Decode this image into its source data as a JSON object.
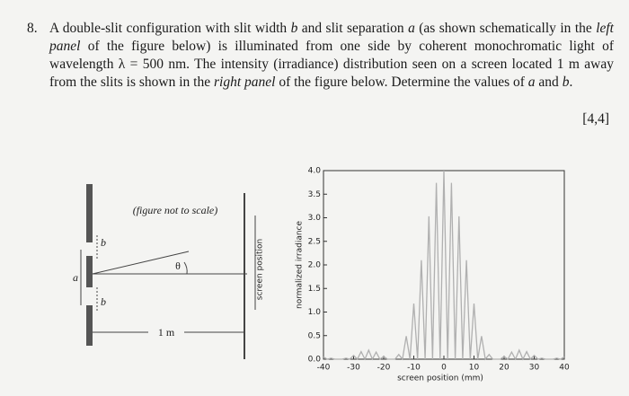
{
  "question": {
    "number": "8.",
    "segments": [
      "A double-slit configuration with slit width ",
      "b",
      " and slit separation ",
      "a",
      " (as shown schematically in the ",
      "left panel",
      " of the figure below) is illuminated from one side by coherent monochromatic light of wavelength λ = 500 nm. The intensity (irradiance) distribution seen on a screen located 1 m away from the slits is shown in the ",
      "right panel",
      " of the figure below. Determine the values of ",
      "a",
      " and ",
      "b",
      "."
    ],
    "marks": "[4,4]"
  },
  "left_panel": {
    "note": "(figure not to scale)",
    "slit_width_top": "b",
    "separation": "a",
    "slit_width_bottom": "b",
    "angle": "θ",
    "distance": "1 m",
    "screen_label": "screen position"
  },
  "chart_data": {
    "type": "line",
    "xlabel": "screen position (mm)",
    "ylabel": "normalized irradiance",
    "x": [
      -40,
      -38.75,
      -37.5,
      -36.25,
      -35,
      -33.75,
      -32.5,
      -31.25,
      -30,
      -28.75,
      -27.5,
      -26.25,
      -25,
      -23.75,
      -22.5,
      -21.25,
      -20,
      -18.75,
      -17.5,
      -16.25,
      -15,
      -13.75,
      -12.5,
      -11.25,
      -10,
      -8.75,
      -7.5,
      -6.25,
      -5,
      -3.75,
      -2.5,
      -1.25,
      0,
      1.25,
      2.5,
      3.75,
      5,
      6.25,
      7.5,
      8.75,
      10,
      11.25,
      12.5,
      13.75,
      15,
      16.25,
      17.5,
      18.75,
      20,
      21.25,
      22.5,
      23.75,
      25,
      26.25,
      27.5,
      28.75,
      30,
      31.25,
      32.5,
      33.75,
      35,
      36.25,
      37.5,
      38.75,
      40
    ],
    "values": [
      0.05,
      0,
      0.02,
      0,
      0,
      0,
      0.02,
      0,
      0.08,
      0,
      0.16,
      0,
      0.19,
      0,
      0.15,
      0,
      0.06,
      0,
      0,
      0,
      0.1,
      0,
      0.49,
      0,
      1.18,
      0,
      2.1,
      0,
      3.03,
      0,
      3.74,
      0,
      4,
      0,
      3.74,
      0,
      3.03,
      0,
      2.1,
      0,
      1.18,
      0,
      0.49,
      0,
      0.1,
      0,
      0,
      0,
      0.06,
      0,
      0.15,
      0,
      0.19,
      0,
      0.16,
      0,
      0.08,
      0,
      0.02,
      0,
      0,
      0,
      0.02,
      0,
      0.05
    ],
    "color": "#b0b0b0",
    "xlim": [
      -40,
      40
    ],
    "xticks": [
      -40,
      -30,
      -20,
      -10,
      0,
      10,
      20,
      30,
      40
    ],
    "ylim": [
      0,
      4
    ],
    "yticks": [
      {
        "value": 0,
        "label": "0.0"
      },
      {
        "value": 0.5,
        "label": "0.5"
      },
      {
        "value": 1,
        "label": "1.0"
      },
      {
        "value": 1.5,
        "label": "1.5"
      },
      {
        "value": 2,
        "label": "2.0"
      },
      {
        "value": 2.5,
        "label": "2.5"
      },
      {
        "value": 3,
        "label": "3.0"
      },
      {
        "value": 3.5,
        "label": "3.5"
      },
      {
        "value": 4,
        "label": "4.0"
      }
    ]
  }
}
